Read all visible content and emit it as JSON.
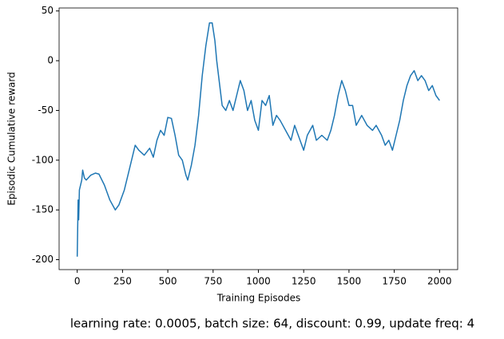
{
  "chart_data": {
    "type": "line",
    "x_label": "Training Episodes",
    "y_label": "Episodic Cumulative reward",
    "caption": "learning rate: 0.0005, batch size: 64, discount: 0.99, update freq: 4",
    "x": [
      0,
      5,
      8,
      12,
      25,
      30,
      40,
      50,
      75,
      100,
      120,
      150,
      180,
      210,
      230,
      260,
      280,
      300,
      320,
      340,
      370,
      400,
      420,
      440,
      460,
      480,
      500,
      520,
      540,
      560,
      580,
      600,
      610,
      630,
      650,
      670,
      690,
      710,
      730,
      745,
      760,
      770,
      790,
      800,
      820,
      840,
      860,
      880,
      900,
      920,
      940,
      960,
      980,
      1000,
      1020,
      1040,
      1060,
      1080,
      1100,
      1120,
      1150,
      1180,
      1200,
      1220,
      1250,
      1270,
      1300,
      1320,
      1350,
      1380,
      1400,
      1420,
      1440,
      1460,
      1480,
      1500,
      1520,
      1540,
      1570,
      1600,
      1630,
      1650,
      1680,
      1700,
      1720,
      1740,
      1760,
      1780,
      1800,
      1820,
      1840,
      1860,
      1880,
      1900,
      1920,
      1940,
      1960,
      1980,
      2000
    ],
    "series": [
      {
        "name": "reward",
        "color": "#1f77b4",
        "values": [
          -197,
          -140,
          -160,
          -130,
          -120,
          -110,
          -118,
          -120,
          -115,
          -113,
          -114,
          -125,
          -140,
          -150,
          -145,
          -130,
          -115,
          -100,
          -85,
          -90,
          -95,
          -88,
          -97,
          -80,
          -70,
          -75,
          -57,
          -58,
          -75,
          -95,
          -100,
          -115,
          -120,
          -105,
          -85,
          -55,
          -15,
          15,
          38,
          38,
          20,
          0,
          -30,
          -45,
          -50,
          -40,
          -50,
          -35,
          -20,
          -30,
          -50,
          -40,
          -60,
          -70,
          -40,
          -45,
          -35,
          -65,
          -55,
          -60,
          -70,
          -80,
          -65,
          -75,
          -90,
          -75,
          -65,
          -80,
          -75,
          -80,
          -70,
          -55,
          -35,
          -20,
          -30,
          -45,
          -45,
          -65,
          -55,
          -65,
          -70,
          -65,
          -75,
          -85,
          -80,
          -90,
          -75,
          -60,
          -40,
          -25,
          -15,
          -10,
          -20,
          -15,
          -20,
          -30,
          -25,
          -35,
          -40
        ]
      }
    ],
    "xlim": [
      -100,
      2100
    ],
    "ylim": [
      -210,
      53
    ],
    "xticks": [
      0,
      250,
      500,
      750,
      1000,
      1250,
      1500,
      1750,
      2000
    ],
    "yticks": [
      -200,
      -150,
      -100,
      -50,
      0,
      50
    ],
    "grid": false
  }
}
